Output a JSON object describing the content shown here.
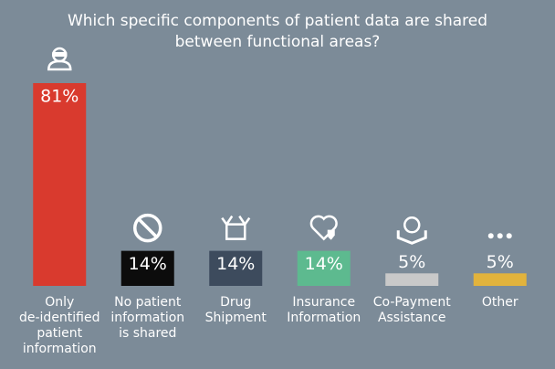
{
  "chart_data": {
    "type": "bar",
    "title": "Which specific components of patient data are shared between functional areas?",
    "categories": [
      [
        "Only",
        "de-identified",
        "patient",
        "information"
      ],
      [
        "No patient",
        "information",
        "is shared"
      ],
      [
        "Drug",
        "Shipment"
      ],
      [
        "Insurance",
        "Information"
      ],
      [
        "Co-Payment",
        "Assistance"
      ],
      [
        "Other"
      ]
    ],
    "values": [
      81,
      14,
      14,
      14,
      5,
      5
    ],
    "value_labels": [
      "81%",
      "14%",
      "14%",
      "14%",
      "5%",
      "5%"
    ],
    "colors": [
      "#d93a2e",
      "#0c0c0c",
      "#3d4b5d",
      "#5dba8f",
      "#c9c9c9",
      "#e2b33c"
    ]
  }
}
